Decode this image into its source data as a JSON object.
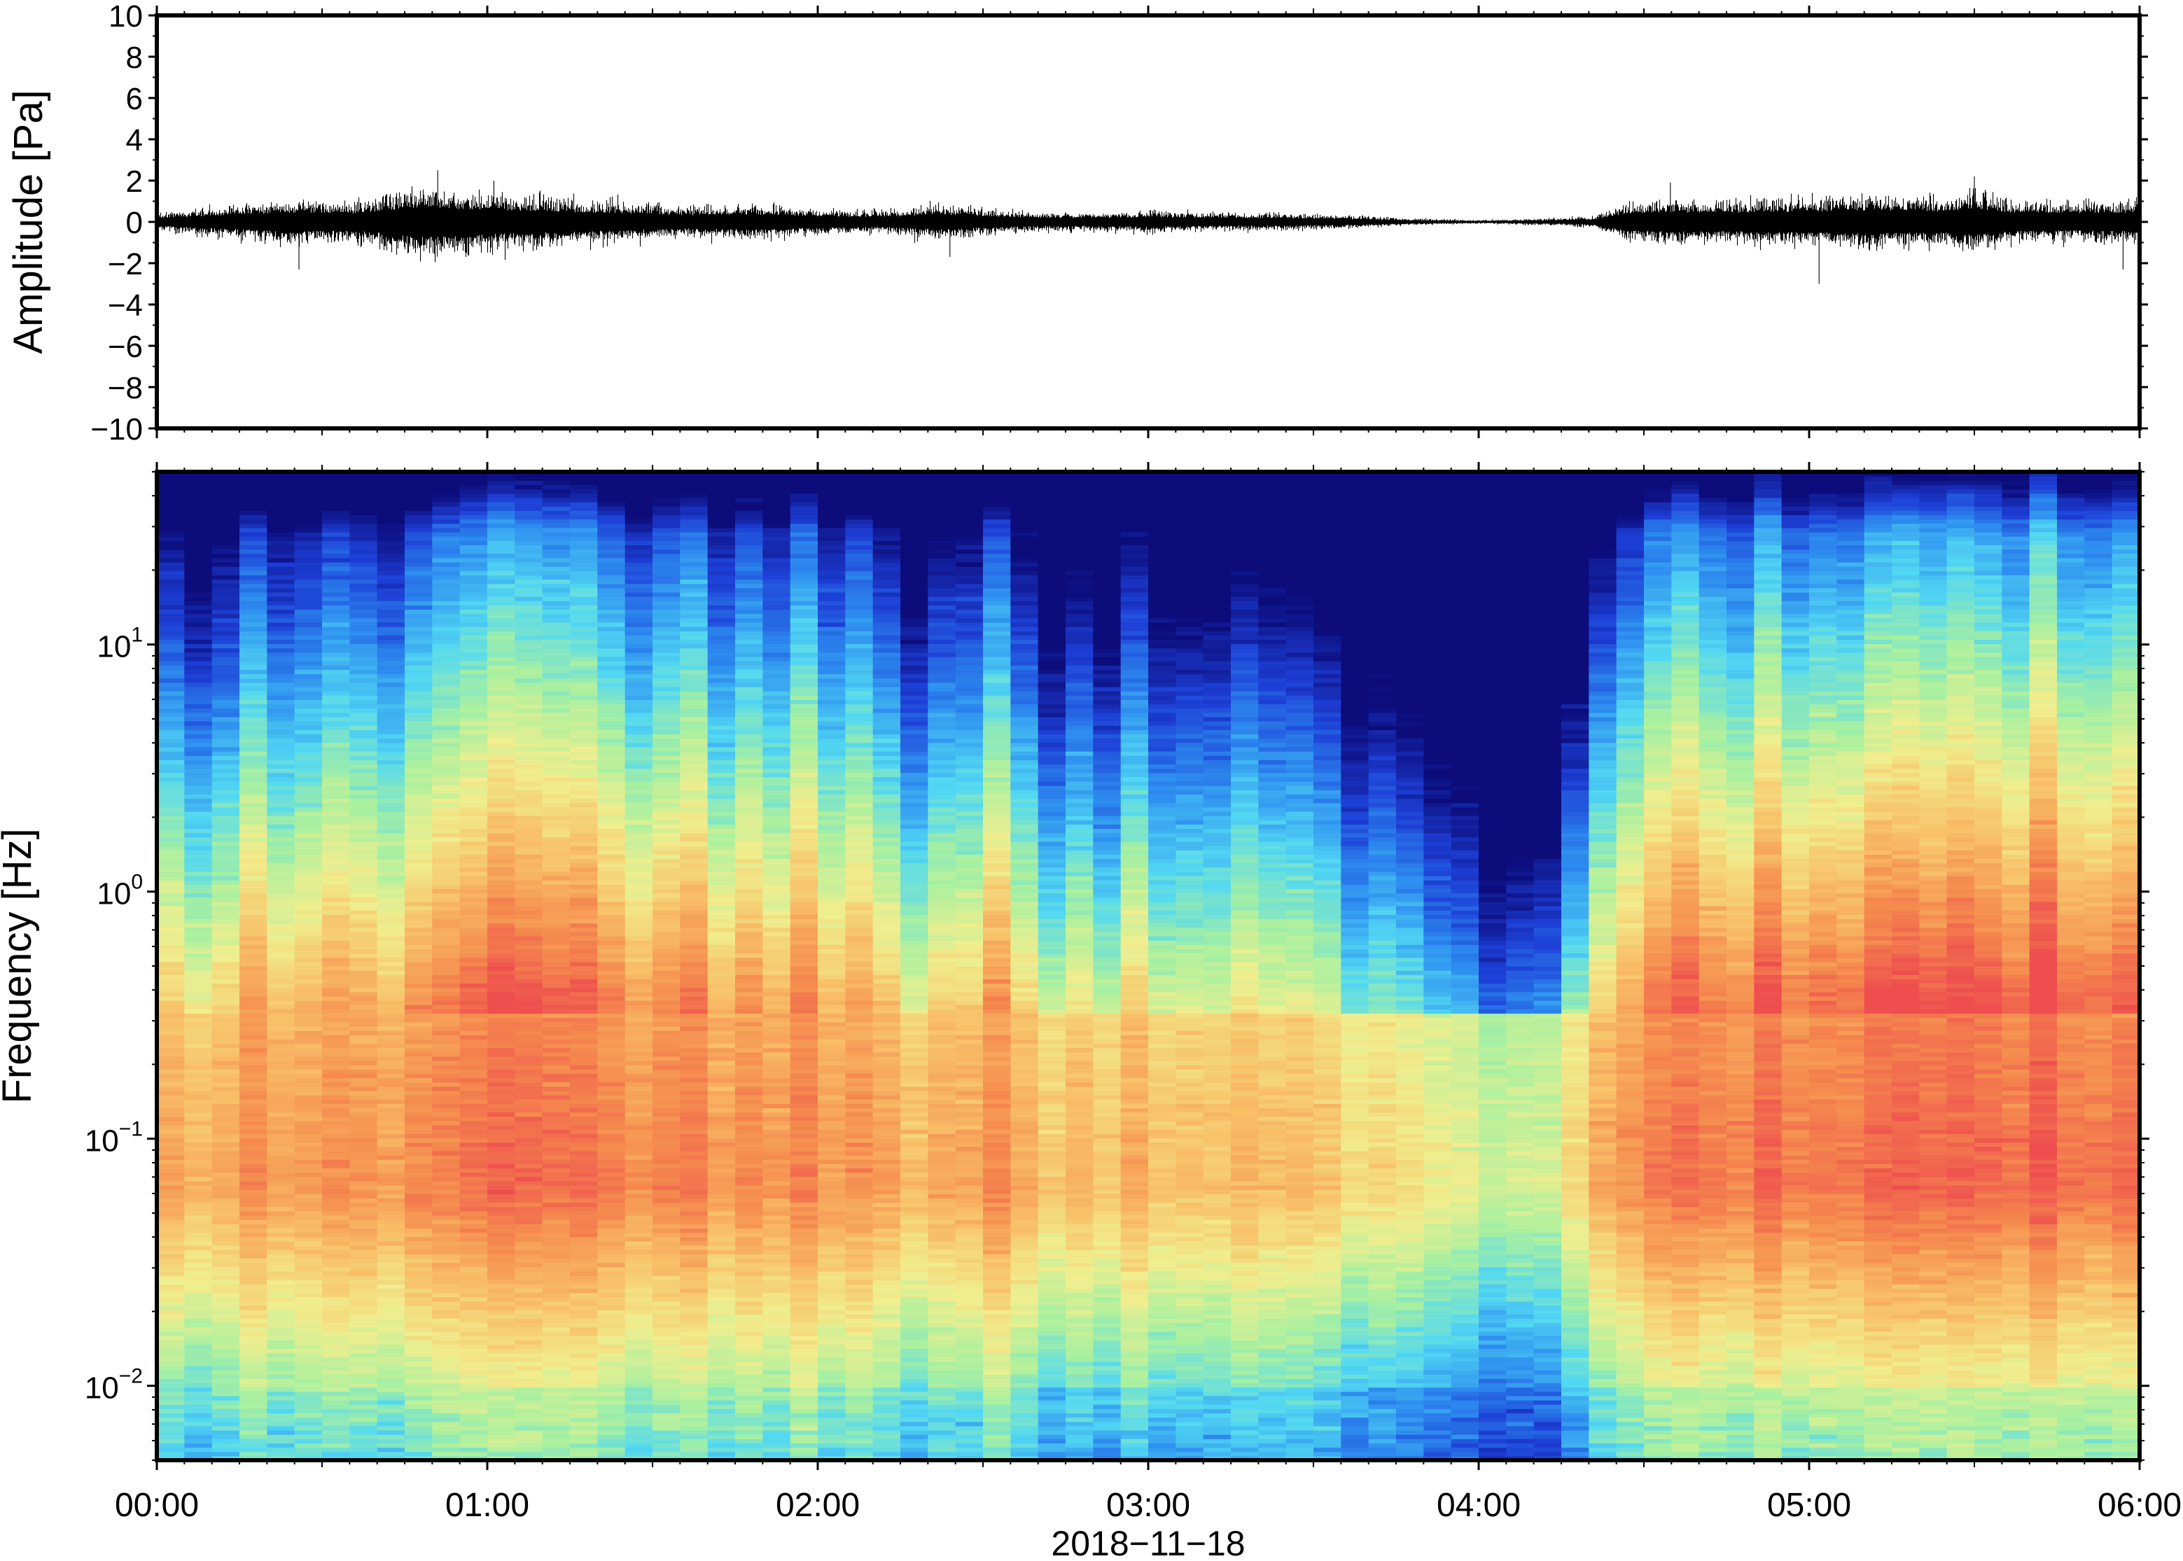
{
  "chart_data": [
    {
      "type": "line",
      "panel": "waveform",
      "ylabel": "Amplitude [Pa]",
      "ylim": [
        -10,
        10
      ],
      "yticks": [
        {
          "value": 10,
          "label": "10"
        },
        {
          "value": 8,
          "label": "8"
        },
        {
          "value": 6,
          "label": "6"
        },
        {
          "value": 4,
          "label": "4"
        },
        {
          "value": 2,
          "label": "2"
        },
        {
          "value": 0,
          "label": "0"
        },
        {
          "value": -2,
          "label": "−2"
        },
        {
          "value": -4,
          "label": "−4"
        },
        {
          "value": -6,
          "label": "−6"
        },
        {
          "value": -8,
          "label": "−8"
        },
        {
          "value": -10,
          "label": "−10"
        }
      ],
      "xlim_hours": [
        0,
        6
      ],
      "envelope": {
        "x_hours": [
          0,
          0.2,
          0.4,
          0.6,
          0.8,
          0.9,
          1.0,
          1.2,
          1.4,
          1.6,
          1.8,
          2.0,
          2.2,
          2.35,
          2.5,
          2.7,
          2.9,
          3.0,
          3.2,
          3.4,
          3.6,
          3.8,
          4.0,
          4.2,
          4.35,
          4.45,
          4.6,
          4.8,
          5.0,
          5.2,
          5.4,
          5.5,
          5.6,
          5.8,
          6.0
        ],
        "amplitude_pa": [
          0.4,
          0.7,
          1.0,
          0.9,
          1.6,
          1.4,
          1.3,
          1.1,
          0.9,
          0.7,
          0.8,
          0.6,
          0.5,
          0.8,
          0.6,
          0.4,
          0.45,
          0.5,
          0.4,
          0.4,
          0.3,
          0.15,
          0.08,
          0.15,
          0.25,
          0.9,
          1.0,
          1.0,
          1.1,
          1.2,
          1.1,
          1.4,
          1.0,
          0.9,
          1.0
        ],
        "peak_spikes": [
          {
            "x_hours": 0.85,
            "value": 2.5
          },
          {
            "x_hours": 1.02,
            "value": 2.0
          },
          {
            "x_hours": 0.43,
            "value": -2.3
          },
          {
            "x_hours": 2.4,
            "value": -1.7
          },
          {
            "x_hours": 4.58,
            "value": 1.9
          },
          {
            "x_hours": 5.03,
            "value": -3.0
          },
          {
            "x_hours": 5.5,
            "value": 2.2
          },
          {
            "x_hours": 5.95,
            "value": -2.3
          }
        ]
      }
    },
    {
      "type": "heatmap",
      "panel": "spectrogram",
      "ylabel": "Frequency [Hz]",
      "yscale": "log",
      "ylim_hz": [
        0.005,
        50
      ],
      "yticks": [
        {
          "value": 10,
          "base": "10",
          "exp": "1"
        },
        {
          "value": 1,
          "base": "10",
          "exp": "0"
        },
        {
          "value": 0.1,
          "base": "10",
          "exp": "−1"
        },
        {
          "value": 0.01,
          "base": "10",
          "exp": "−2"
        }
      ],
      "colormap": [
        "#0c0c7a",
        "#1d3fd6",
        "#2e8ff0",
        "#52d8f2",
        "#a8f0a0",
        "#f0ee8e",
        "#f8c068",
        "#f58a4e",
        "#ee4e4e"
      ],
      "time_hours": [
        0,
        0.25,
        0.5,
        0.75,
        1.0,
        1.25,
        1.5,
        1.75,
        2.0,
        2.25,
        2.5,
        2.75,
        3.0,
        3.25,
        3.5,
        3.75,
        4.0,
        4.25,
        4.5,
        4.75,
        5.0,
        5.25,
        5.5,
        5.75,
        6.0
      ],
      "activity_level": [
        0.55,
        0.65,
        0.72,
        0.68,
        0.82,
        0.8,
        0.72,
        0.7,
        0.72,
        0.55,
        0.7,
        0.48,
        0.55,
        0.55,
        0.45,
        0.3,
        0.15,
        0.28,
        0.78,
        0.8,
        0.85,
        0.83,
        0.88,
        0.86,
        0.86
      ]
    }
  ],
  "x_axis": {
    "ticks": [
      {
        "hours": 0,
        "label": "00:00"
      },
      {
        "hours": 1,
        "label": "01:00"
      },
      {
        "hours": 2,
        "label": "02:00"
      },
      {
        "hours": 3,
        "label": "03:00"
      },
      {
        "hours": 4,
        "label": "04:00"
      },
      {
        "hours": 5,
        "label": "05:00"
      },
      {
        "hours": 6,
        "label": "06:00"
      }
    ],
    "xlabel": "2018−11−18"
  }
}
